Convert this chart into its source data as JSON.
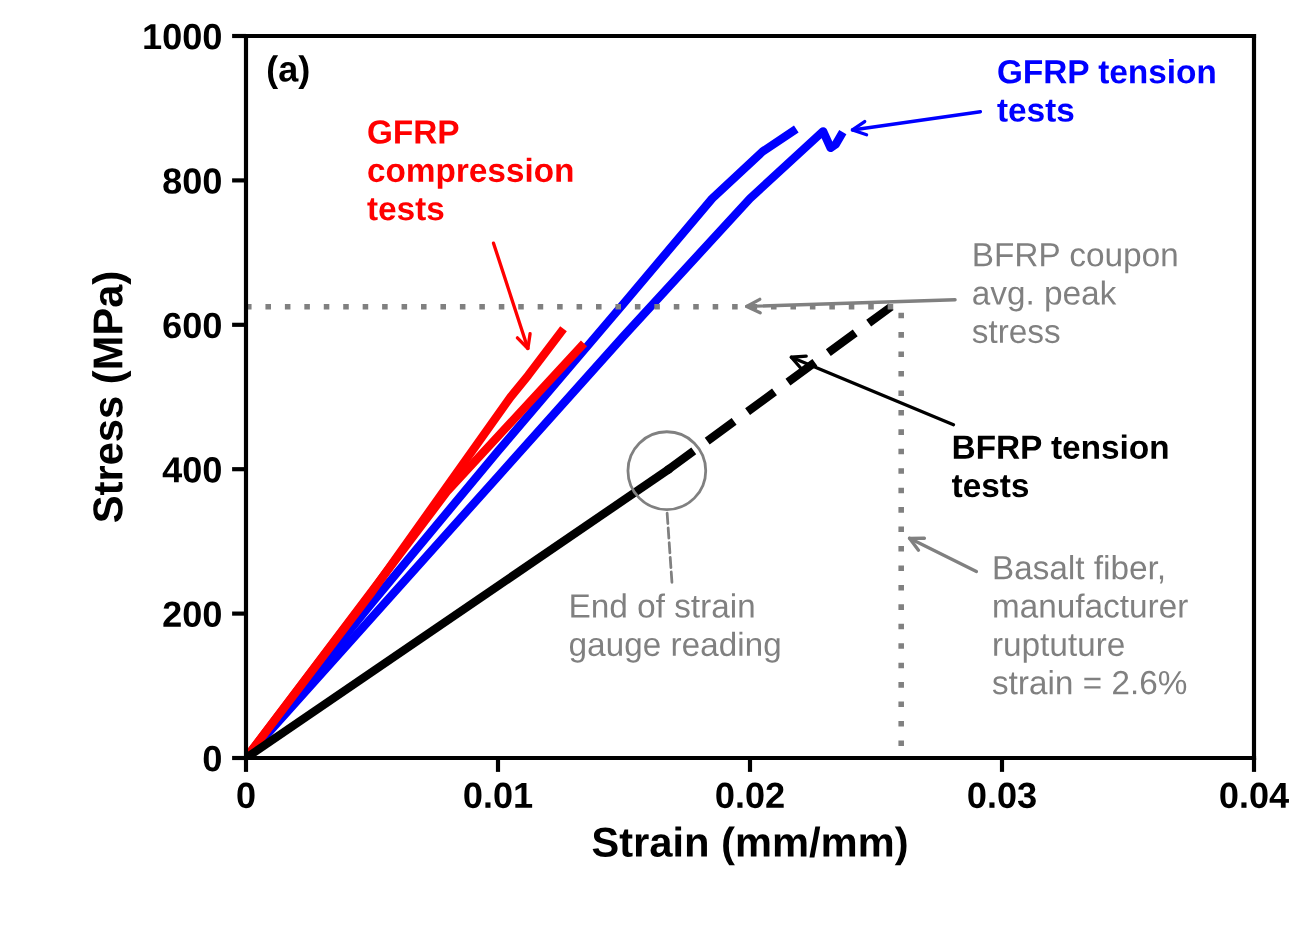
{
  "chart_data": {
    "type": "line",
    "xlabel": "Strain (mm/mm)",
    "ylabel": "Stress (MPa)",
    "xlim": [
      0,
      0.04
    ],
    "xticks": [
      0,
      0.01,
      0.02,
      0.03,
      0.04
    ],
    "ylim": [
      0,
      1000
    ],
    "yticks": [
      0,
      200,
      400,
      600,
      800,
      1000
    ],
    "grid": false,
    "legend": false,
    "series": [
      {
        "name": "GFRP tension\ntests",
        "color": "#0000ff",
        "line_style": "solid",
        "x": [
          0,
          0.005,
          0.01,
          0.015,
          0.0185,
          0.0205,
          0.0217
        ],
        "values": [
          0,
          215,
          425,
          630,
          775,
          840,
          868
        ]
      },
      {
        "color": "#0000ff",
        "line_style": "solid",
        "x": [
          0,
          0.005,
          0.01,
          0.015,
          0.02,
          0.0229,
          0.0232,
          0.0234,
          0.0236
        ],
        "values": [
          0,
          195,
          390,
          585,
          775,
          868,
          845,
          850,
          862
        ]
      },
      {
        "name": "GFRP\ncompression\ntests",
        "color": "#ff0000",
        "line_style": "solid",
        "x": [
          0,
          0.005,
          0.0105,
          0.0112,
          0.0125
        ],
        "values": [
          0,
          230,
          500,
          530,
          590
        ]
      },
      {
        "color": "#ff0000",
        "line_style": "solid",
        "x": [
          0,
          0.008,
          0.0133
        ],
        "values": [
          0,
          370,
          570
        ]
      },
      {
        "name": "BFRP tension\ntests",
        "color": "#000000",
        "line_style": "solid",
        "x": [
          0,
          0.0167
        ],
        "values": [
          0,
          398
        ]
      },
      {
        "color": "#000000",
        "line_style": "dashed",
        "x": [
          0.0167,
          0.0256
        ],
        "values": [
          398,
          625
        ]
      },
      {
        "color": "#808080",
        "line_style": "dotted",
        "x": [
          0,
          0.026,
          0.026
        ],
        "values": [
          625,
          625,
          0
        ]
      }
    ],
    "annotations": [
      "(a)",
      {
        "text": "BFRP coupon\navg. peak\nstress",
        "x": 0.0195,
        "y": 625
      },
      {
        "text": "Basalt fiber,\nmanufacturer\nruptuture\nstrain = 2.6%",
        "x": 0.026,
        "y": 310
      },
      {
        "text": "End of strain\ngauge reading",
        "x": 0.0167,
        "y": 345
      }
    ]
  }
}
